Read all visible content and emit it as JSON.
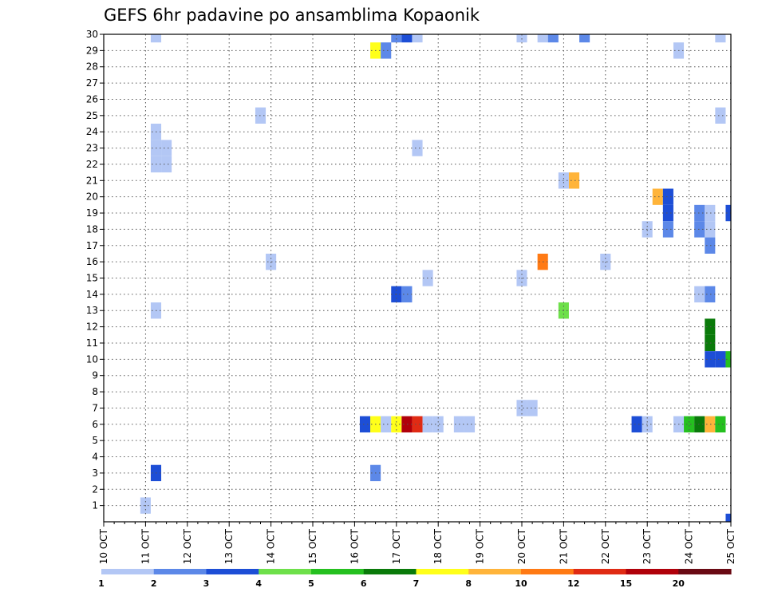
{
  "chart_data": {
    "type": "heatmap",
    "title": "GEFS 6hr padavine po ansamblima Kopaonik",
    "xlabel": "",
    "ylabel": "",
    "x_tick_labels": [
      "10 OCT",
      "11 OCT",
      "12 OCT",
      "13 OCT",
      "14 OCT",
      "15 OCT",
      "16 OCT",
      "17 OCT",
      "18 OCT",
      "19 OCT",
      "20 OCT",
      "21 OCT",
      "22 OCT",
      "23 OCT",
      "24 OCT",
      "25 OCT"
    ],
    "y_tick_labels": [
      "1",
      "2",
      "3",
      "4",
      "5",
      "6",
      "7",
      "8",
      "9",
      "10",
      "11",
      "12",
      "13",
      "14",
      "15",
      "16",
      "17",
      "18",
      "19",
      "20",
      "21",
      "22",
      "23",
      "24",
      "25",
      "26",
      "27",
      "28",
      "29",
      "30"
    ],
    "xlim_steps": [
      0,
      60
    ],
    "ylim": [
      0,
      30
    ],
    "grid": true,
    "legend": "colorbar-bottom",
    "colorbar": {
      "labels": [
        "1",
        "2",
        "3",
        "4",
        "5",
        "6",
        "7",
        "8",
        "10",
        "12",
        "15",
        "20"
      ],
      "colors": [
        "#b3c7f5",
        "#5c88e8",
        "#1d4ed6",
        "#6ee04a",
        "#25c01f",
        "#0a7a0a",
        "#ffff1a",
        "#ffb43a",
        "#ff7a14",
        "#e02b14",
        "#b0000a",
        "#6a0a14"
      ]
    },
    "cells": [
      {
        "member": 30,
        "step": 5,
        "level": 0
      },
      {
        "member": 30,
        "step": 28,
        "level": 1
      },
      {
        "member": 30,
        "step": 29,
        "level": 2
      },
      {
        "member": 30,
        "step": 30,
        "level": 0
      },
      {
        "member": 30,
        "step": 40,
        "level": 0
      },
      {
        "member": 30,
        "step": 42,
        "level": 0
      },
      {
        "member": 30,
        "step": 43,
        "level": 1
      },
      {
        "member": 30,
        "step": 46,
        "level": 1
      },
      {
        "member": 30,
        "step": 59,
        "level": 0
      },
      {
        "member": 29,
        "step": 26,
        "level": 6
      },
      {
        "member": 29,
        "step": 27,
        "level": 1
      },
      {
        "member": 29,
        "step": 55,
        "level": 0
      },
      {
        "member": 25,
        "step": 15,
        "level": 0
      },
      {
        "member": 25,
        "step": 59,
        "level": 0
      },
      {
        "member": 24,
        "step": 5,
        "level": 0
      },
      {
        "member": 23,
        "step": 5,
        "level": 0
      },
      {
        "member": 23,
        "step": 6,
        "level": 0
      },
      {
        "member": 23,
        "step": 30,
        "level": 0
      },
      {
        "member": 22,
        "step": 5,
        "level": 0
      },
      {
        "member": 22,
        "step": 6,
        "level": 0
      },
      {
        "member": 21,
        "step": 44,
        "level": 0
      },
      {
        "member": 21,
        "step": 45,
        "level": 7
      },
      {
        "member": 20,
        "step": 53,
        "level": 7
      },
      {
        "member": 20,
        "step": 54,
        "level": 2
      },
      {
        "member": 19,
        "step": 54,
        "level": 2
      },
      {
        "member": 19,
        "step": 57,
        "level": 1
      },
      {
        "member": 19,
        "step": 58,
        "level": 0
      },
      {
        "member": 19,
        "step": 60,
        "level": 2
      },
      {
        "member": 18,
        "step": 52,
        "level": 0
      },
      {
        "member": 18,
        "step": 54,
        "level": 1
      },
      {
        "member": 18,
        "step": 57,
        "level": 1
      },
      {
        "member": 18,
        "step": 58,
        "level": 0
      },
      {
        "member": 17,
        "step": 58,
        "level": 1
      },
      {
        "member": 16,
        "step": 16,
        "level": 0
      },
      {
        "member": 16,
        "step": 42,
        "level": 8
      },
      {
        "member": 16,
        "step": 48,
        "level": 0
      },
      {
        "member": 15,
        "step": 31,
        "level": 0
      },
      {
        "member": 15,
        "step": 40,
        "level": 0
      },
      {
        "member": 14,
        "step": 28,
        "level": 2
      },
      {
        "member": 14,
        "step": 29,
        "level": 1
      },
      {
        "member": 14,
        "step": 57,
        "level": 0
      },
      {
        "member": 14,
        "step": 58,
        "level": 1
      },
      {
        "member": 13,
        "step": 5,
        "level": 0
      },
      {
        "member": 13,
        "step": 44,
        "level": 3
      },
      {
        "member": 12,
        "step": 58,
        "level": 5
      },
      {
        "member": 11,
        "step": 58,
        "level": 5
      },
      {
        "member": 10,
        "step": 58,
        "level": 2
      },
      {
        "member": 10,
        "step": 59,
        "level": 2
      },
      {
        "member": 10,
        "step": 60,
        "level": 4
      },
      {
        "member": 7,
        "step": 40,
        "level": 0
      },
      {
        "member": 7,
        "step": 41,
        "level": 0
      },
      {
        "member": 6,
        "step": 25,
        "level": 2
      },
      {
        "member": 6,
        "step": 26,
        "level": 6
      },
      {
        "member": 6,
        "step": 27,
        "level": 0
      },
      {
        "member": 6,
        "step": 28,
        "level": 6
      },
      {
        "member": 6,
        "step": 29,
        "level": 10
      },
      {
        "member": 6,
        "step": 30,
        "level": 9
      },
      {
        "member": 6,
        "step": 31,
        "level": 0
      },
      {
        "member": 6,
        "step": 32,
        "level": 0
      },
      {
        "member": 6,
        "step": 34,
        "level": 0
      },
      {
        "member": 6,
        "step": 35,
        "level": 0
      },
      {
        "member": 6,
        "step": 51,
        "level": 2
      },
      {
        "member": 6,
        "step": 52,
        "level": 0
      },
      {
        "member": 6,
        "step": 55,
        "level": 0
      },
      {
        "member": 6,
        "step": 56,
        "level": 4
      },
      {
        "member": 6,
        "step": 57,
        "level": 5
      },
      {
        "member": 6,
        "step": 58,
        "level": 7
      },
      {
        "member": 6,
        "step": 59,
        "level": 4
      },
      {
        "member": 3,
        "step": 5,
        "level": 2
      },
      {
        "member": 3,
        "step": 26,
        "level": 1
      },
      {
        "member": 1,
        "step": 4,
        "level": 0
      },
      {
        "member": 0,
        "step": 60,
        "level": 2
      }
    ]
  }
}
